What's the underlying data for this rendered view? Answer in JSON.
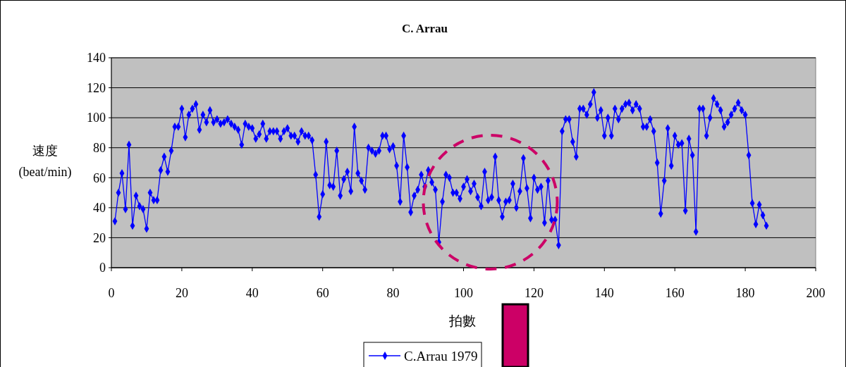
{
  "chart_data": {
    "type": "line",
    "title": "C. Arrau",
    "xlabel": "拍數",
    "ylabel": "速度\n(beat/min)",
    "xlim": [
      0,
      200
    ],
    "xticks": [
      0,
      20,
      40,
      60,
      80,
      100,
      120,
      140,
      160,
      180,
      200
    ],
    "ylim": [
      0,
      140
    ],
    "yticks": [
      0,
      20,
      40,
      60,
      80,
      100,
      120,
      140
    ],
    "grid": "y",
    "legend": "bottom",
    "marker": "diamond",
    "line_style": "solid",
    "series": [
      {
        "name": "C.Arrau 1979",
        "color": "#0000ff",
        "x": [
          1,
          2,
          3,
          4,
          5,
          6,
          7,
          8,
          9,
          10,
          11,
          12,
          13,
          14,
          15,
          16,
          17,
          18,
          19,
          20,
          21,
          22,
          23,
          24,
          25,
          26,
          27,
          28,
          29,
          30,
          31,
          32,
          33,
          34,
          35,
          36,
          37,
          38,
          39,
          40,
          41,
          42,
          43,
          44,
          45,
          46,
          47,
          48,
          49,
          50,
          51,
          52,
          53,
          54,
          55,
          56,
          57,
          58,
          59,
          60,
          61,
          62,
          63,
          64,
          65,
          66,
          67,
          68,
          69,
          70,
          71,
          72,
          73,
          74,
          75,
          76,
          77,
          78,
          79,
          80,
          81,
          82,
          83,
          84,
          85,
          86,
          87,
          88,
          89,
          90,
          91,
          92,
          93,
          94,
          95,
          96,
          97,
          98,
          99,
          100,
          101,
          102,
          103,
          104,
          105,
          106,
          107,
          108,
          109,
          110,
          111,
          112,
          113,
          114,
          115,
          116,
          117,
          118,
          119,
          120,
          121,
          122,
          123,
          124,
          125,
          126,
          127,
          128,
          129,
          130,
          131,
          132,
          133,
          134,
          135,
          136,
          137,
          138,
          139,
          140,
          141,
          142,
          143,
          144,
          145,
          146,
          147,
          148,
          149,
          150,
          151,
          152,
          153,
          154,
          155,
          156,
          157,
          158,
          159,
          160,
          161,
          162,
          163,
          164,
          165,
          166,
          167,
          168,
          169,
          170,
          171,
          172,
          173,
          174,
          175,
          176,
          177,
          178,
          179,
          180,
          181,
          182,
          183,
          184,
          185,
          186
        ],
        "values": [
          31,
          50,
          63,
          39,
          82,
          28,
          48,
          41,
          39,
          26,
          50,
          45,
          45,
          65,
          74,
          64,
          78,
          94,
          94,
          106,
          87,
          102,
          106,
          109,
          92,
          102,
          97,
          105,
          97,
          99,
          96,
          97,
          99,
          96,
          94,
          92,
          82,
          96,
          94,
          93,
          86,
          89,
          96,
          86,
          91,
          91,
          91,
          86,
          91,
          93,
          88,
          88,
          84,
          91,
          88,
          88,
          85,
          62,
          34,
          49,
          84,
          55,
          54,
          78,
          48,
          59,
          64,
          51,
          94,
          63,
          58,
          52,
          80,
          78,
          76,
          78,
          88,
          88,
          79,
          81,
          68,
          44,
          88,
          67,
          37,
          48,
          52,
          62,
          54,
          65,
          57,
          52,
          17,
          44,
          62,
          60,
          50,
          50,
          46,
          54,
          59,
          51,
          56,
          47,
          41,
          64,
          45,
          47,
          74,
          45,
          34,
          44,
          45,
          56,
          40,
          51,
          73,
          53,
          33,
          60,
          52,
          54,
          30,
          58,
          32,
          32,
          15,
          91,
          99,
          99,
          84,
          74,
          106,
          106,
          102,
          109,
          117,
          100,
          105,
          88,
          100,
          88,
          106,
          99,
          106,
          109,
          110,
          105,
          109,
          106,
          94,
          94,
          99,
          91,
          70,
          36,
          58,
          93,
          68,
          88,
          82,
          83,
          38,
          86,
          75,
          24,
          106,
          106,
          88,
          100,
          113,
          109,
          105,
          94,
          97,
          102,
          106,
          110,
          105,
          102,
          75,
          43,
          29,
          42,
          35,
          28
        ]
      }
    ]
  }
}
